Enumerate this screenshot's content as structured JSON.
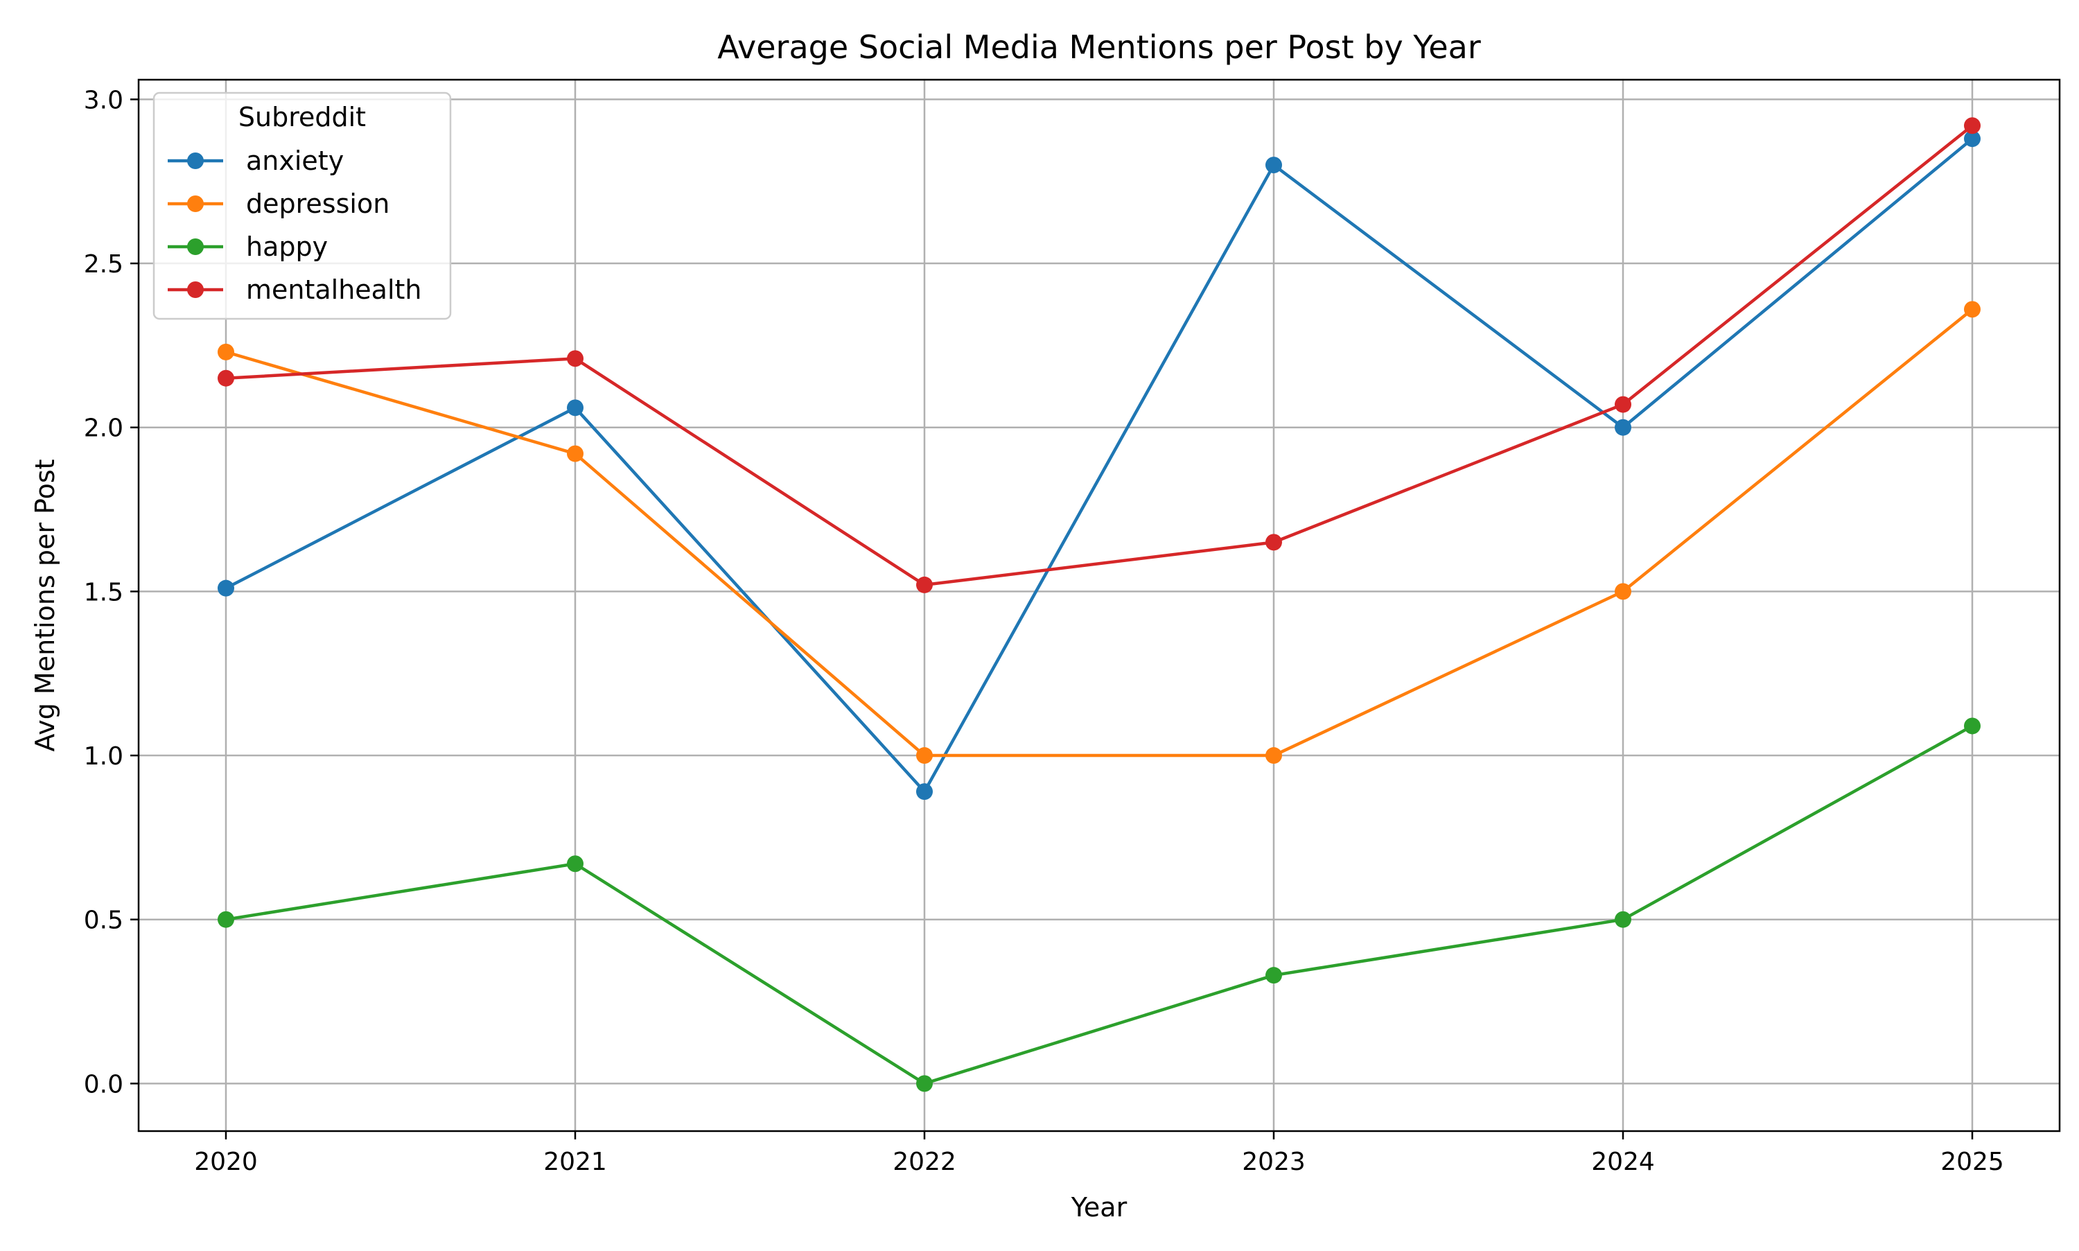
{
  "chart_data": {
    "type": "line",
    "title": "Average Social Media Mentions per Post by Year",
    "xlabel": "Year",
    "ylabel": "Avg Mentions per Post",
    "x": [
      2020,
      2021,
      2022,
      2023,
      2024,
      2025
    ],
    "x_tick_labels": [
      "2020",
      "2021",
      "2022",
      "2023",
      "2024",
      "2025"
    ],
    "xlim": [
      2019.75,
      2025.25
    ],
    "ylim": [
      -0.145,
      3.06
    ],
    "y_ticks": [
      0.0,
      0.5,
      1.0,
      1.5,
      2.0,
      2.5,
      3.0
    ],
    "y_tick_labels": [
      "0.0",
      "0.5",
      "1.0",
      "1.5",
      "2.0",
      "2.5",
      "3.0"
    ],
    "grid": true,
    "marker": "circle",
    "legend": {
      "title": "Subreddit",
      "placement": "top-left"
    },
    "series": [
      {
        "name": "anxiety",
        "color": "#1f77b4",
        "values": [
          1.51,
          2.06,
          0.89,
          2.8,
          2.0,
          2.88
        ]
      },
      {
        "name": "depression",
        "color": "#ff7f0e",
        "values": [
          2.23,
          1.92,
          1.0,
          1.0,
          1.5,
          2.36
        ]
      },
      {
        "name": "happy",
        "color": "#2ca02c",
        "values": [
          0.5,
          0.67,
          0.0,
          0.33,
          0.5,
          1.09
        ]
      },
      {
        "name": "mentalhealth",
        "color": "#d62728",
        "values": [
          2.15,
          2.21,
          1.52,
          1.65,
          2.07,
          2.92
        ]
      }
    ]
  }
}
